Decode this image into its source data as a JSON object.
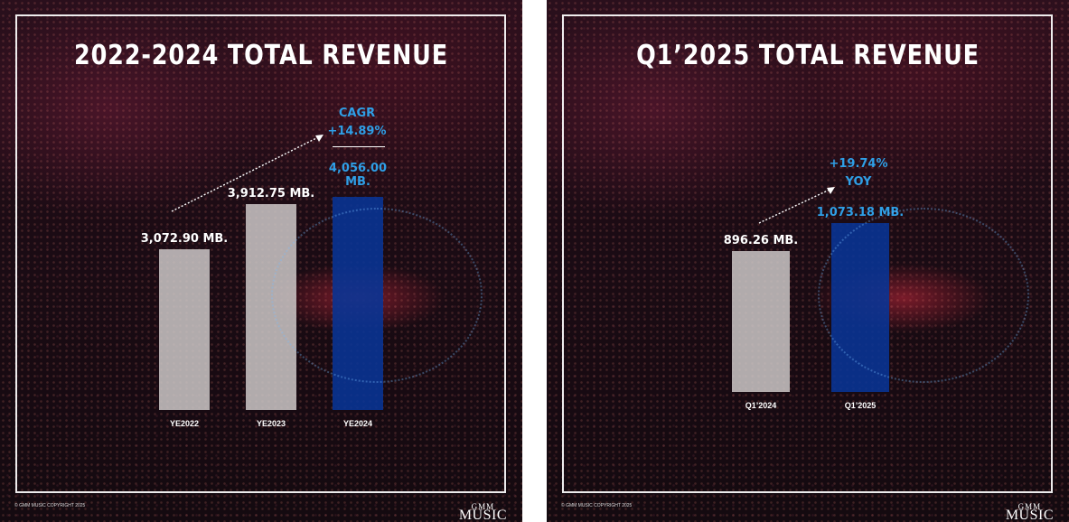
{
  "footer": {
    "copyright": "© GMM MUSIC COPYRIGHT 2025",
    "logo_line1": "GMM",
    "logo_line2": "MUSIC"
  },
  "chart_data": [
    {
      "type": "bar",
      "title": "2022-2024 TOTAL REVENUE",
      "categories": [
        "YE2022",
        "YE2023",
        "YE2024"
      ],
      "values": [
        3072.9,
        3912.75,
        4056.0
      ],
      "value_labels": [
        "3,072.90 MB.",
        "3,912.75 MB.",
        "4,056.00 MB."
      ],
      "unit": "MB.",
      "highlight": "YE2024",
      "growth_label_line1": "CAGR",
      "growth_label_line2": "+14.89%",
      "colors": {
        "base": "#cdc8c8",
        "highlight": "#0834a0",
        "highlight_text": "#2f9fe6"
      }
    },
    {
      "type": "bar",
      "title": "Q1’2025 TOTAL REVENUE",
      "categories": [
        "Q1’2024",
        "Q1’2025"
      ],
      "values": [
        896.26,
        1073.18
      ],
      "value_labels": [
        "896.26 MB.",
        "1,073.18 MB."
      ],
      "unit": "MB.",
      "highlight": "Q1’2025",
      "growth_label_line1": "+19.74%",
      "growth_label_line2": "YOY",
      "colors": {
        "base": "#cdc8c8",
        "highlight": "#0834a0",
        "highlight_text": "#2f9fe6"
      }
    }
  ]
}
